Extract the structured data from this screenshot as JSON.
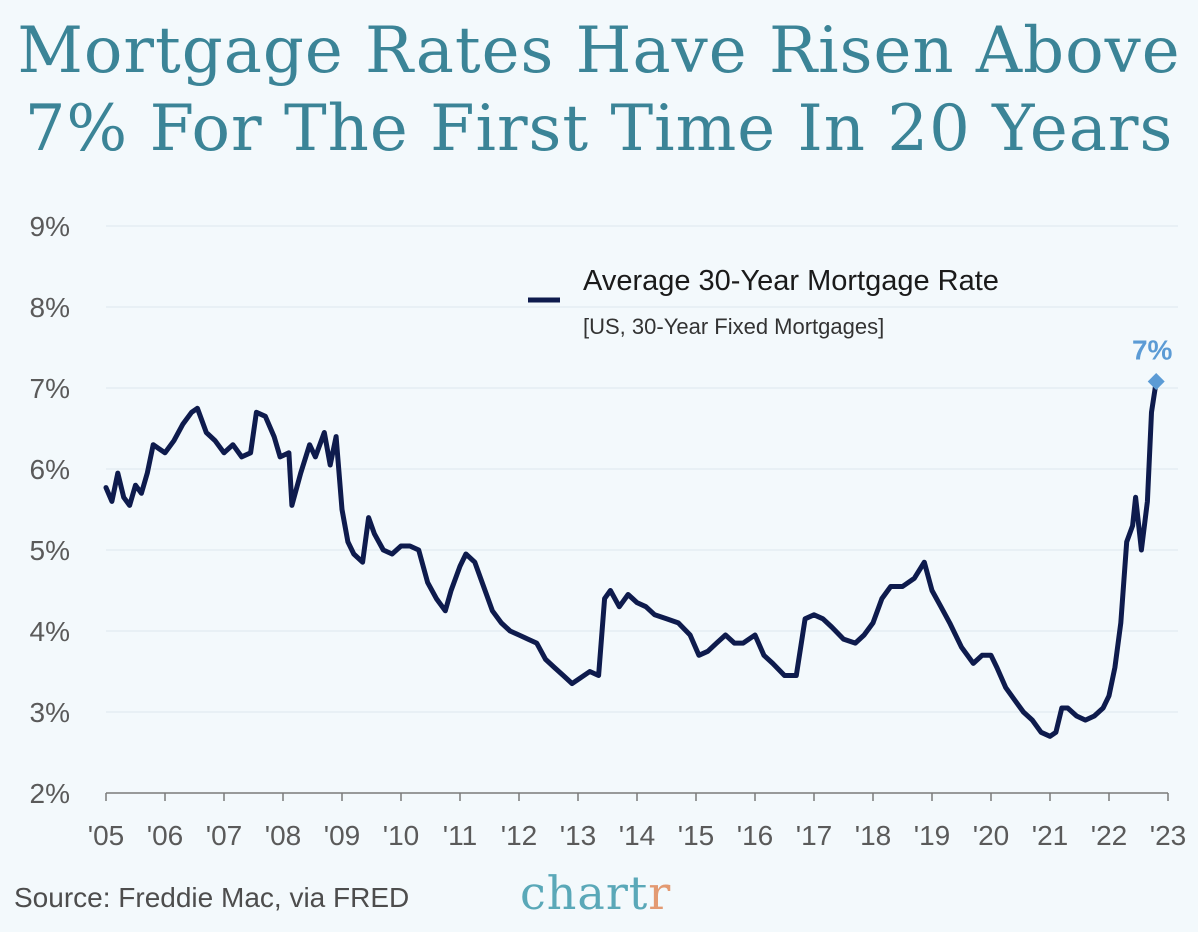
{
  "title": {
    "line1": "Mortgage Rates Have Risen Above",
    "line2": "7% For The First Time In 20 Years"
  },
  "source": "Source: Freddie Mac, via FRED",
  "logo": {
    "main": "chart",
    "accent": "r"
  },
  "colors": {
    "background": "#f3f9fc",
    "title": "#3b8497",
    "line": "#0e1b4d",
    "highlight": "#5b9bd5",
    "grid": "#dde8ee",
    "tick_text": "#5a5a5a",
    "logo": "#5aa8b8",
    "logo_accent": "#e39a72"
  },
  "chart_data": {
    "type": "line",
    "title": "Mortgage Rates Have Risen Above 7% For The First Time In 20 Years",
    "xlabel": "",
    "ylabel": "",
    "ylim": [
      2,
      9
    ],
    "xlim": [
      2005,
      2023
    ],
    "grid": true,
    "legend_position": "top-right",
    "yticks": [
      2,
      3,
      4,
      5,
      6,
      7,
      8,
      9
    ],
    "ytick_labels": [
      "2%",
      "3%",
      "4%",
      "5%",
      "6%",
      "7%",
      "8%",
      "9%"
    ],
    "xtick_values": [
      2005,
      2006,
      2007,
      2008,
      2009,
      2010,
      2011,
      2012,
      2013,
      2014,
      2015,
      2016,
      2017,
      2018,
      2019,
      2020,
      2021,
      2022,
      2023
    ],
    "xtick_labels": [
      "'05",
      "'06",
      "'07",
      "'08",
      "'09",
      "'10",
      "'11",
      "'12",
      "'13",
      "'14",
      "'15",
      "'16",
      "'17",
      "'18",
      "'19",
      "'20",
      "'21",
      "'22",
      "'23"
    ],
    "series": [
      {
        "name": "Average 30-Year Mortgage Rate",
        "subtitle": "[US, 30-Year Fixed Mortgages]",
        "x": [
          2005.0,
          2005.1,
          2005.2,
          2005.3,
          2005.4,
          2005.5,
          2005.6,
          2005.7,
          2005.8,
          2005.9,
          2006.0,
          2006.15,
          2006.3,
          2006.45,
          2006.55,
          2006.7,
          2006.85,
          2007.0,
          2007.15,
          2007.3,
          2007.45,
          2007.55,
          2007.7,
          2007.85,
          2007.95,
          2008.1,
          2008.15,
          2008.3,
          2008.45,
          2008.55,
          2008.7,
          2008.8,
          2008.9,
          2009.0,
          2009.1,
          2009.2,
          2009.35,
          2009.45,
          2009.55,
          2009.7,
          2009.85,
          2010.0,
          2010.15,
          2010.3,
          2010.45,
          2010.6,
          2010.75,
          2010.85,
          2011.0,
          2011.1,
          2011.25,
          2011.4,
          2011.55,
          2011.7,
          2011.85,
          2012.0,
          2012.15,
          2012.3,
          2012.45,
          2012.6,
          2012.75,
          2012.9,
          2013.0,
          2013.2,
          2013.35,
          2013.45,
          2013.55,
          2013.7,
          2013.85,
          2014.0,
          2014.15,
          2014.3,
          2014.5,
          2014.7,
          2014.9,
          2015.05,
          2015.2,
          2015.35,
          2015.5,
          2015.65,
          2015.8,
          2016.0,
          2016.15,
          2016.3,
          2016.5,
          2016.7,
          2016.85,
          2017.0,
          2017.15,
          2017.3,
          2017.5,
          2017.7,
          2017.85,
          2018.0,
          2018.15,
          2018.3,
          2018.5,
          2018.7,
          2018.87,
          2019.0,
          2019.15,
          2019.3,
          2019.5,
          2019.7,
          2019.85,
          2020.0,
          2020.1,
          2020.25,
          2020.4,
          2020.55,
          2020.7,
          2020.85,
          2021.0,
          2021.1,
          2021.2,
          2021.3,
          2021.45,
          2021.6,
          2021.75,
          2021.9,
          2022.0,
          2022.1,
          2022.2,
          2022.3,
          2022.4,
          2022.45,
          2022.55,
          2022.65,
          2022.72,
          2022.8
        ],
        "values": [
          5.77,
          5.6,
          5.95,
          5.65,
          5.55,
          5.8,
          5.7,
          5.95,
          6.3,
          6.25,
          6.2,
          6.35,
          6.55,
          6.7,
          6.75,
          6.45,
          6.35,
          6.2,
          6.3,
          6.15,
          6.2,
          6.7,
          6.65,
          6.4,
          6.15,
          6.2,
          5.55,
          5.95,
          6.3,
          6.15,
          6.45,
          6.05,
          6.4,
          5.5,
          5.1,
          4.95,
          4.85,
          5.4,
          5.2,
          5.0,
          4.95,
          5.05,
          5.05,
          5.0,
          4.6,
          4.4,
          4.25,
          4.5,
          4.8,
          4.95,
          4.85,
          4.55,
          4.25,
          4.1,
          4.0,
          3.95,
          3.9,
          3.85,
          3.65,
          3.55,
          3.45,
          3.35,
          3.4,
          3.5,
          3.45,
          4.4,
          4.5,
          4.3,
          4.45,
          4.35,
          4.3,
          4.2,
          4.15,
          4.1,
          3.95,
          3.7,
          3.75,
          3.85,
          3.95,
          3.85,
          3.85,
          3.95,
          3.7,
          3.6,
          3.45,
          3.45,
          4.15,
          4.2,
          4.15,
          4.05,
          3.9,
          3.85,
          3.95,
          4.1,
          4.4,
          4.55,
          4.55,
          4.65,
          4.85,
          4.5,
          4.3,
          4.1,
          3.8,
          3.6,
          3.7,
          3.7,
          3.55,
          3.3,
          3.15,
          3.0,
          2.9,
          2.75,
          2.7,
          2.75,
          3.05,
          3.05,
          2.95,
          2.9,
          2.95,
          3.05,
          3.2,
          3.55,
          4.1,
          5.1,
          5.3,
          5.65,
          5.0,
          5.6,
          6.7,
          7.08
        ]
      }
    ],
    "annotations": [
      {
        "label": "7%",
        "x": 2022.8,
        "y": 7.08
      }
    ]
  }
}
